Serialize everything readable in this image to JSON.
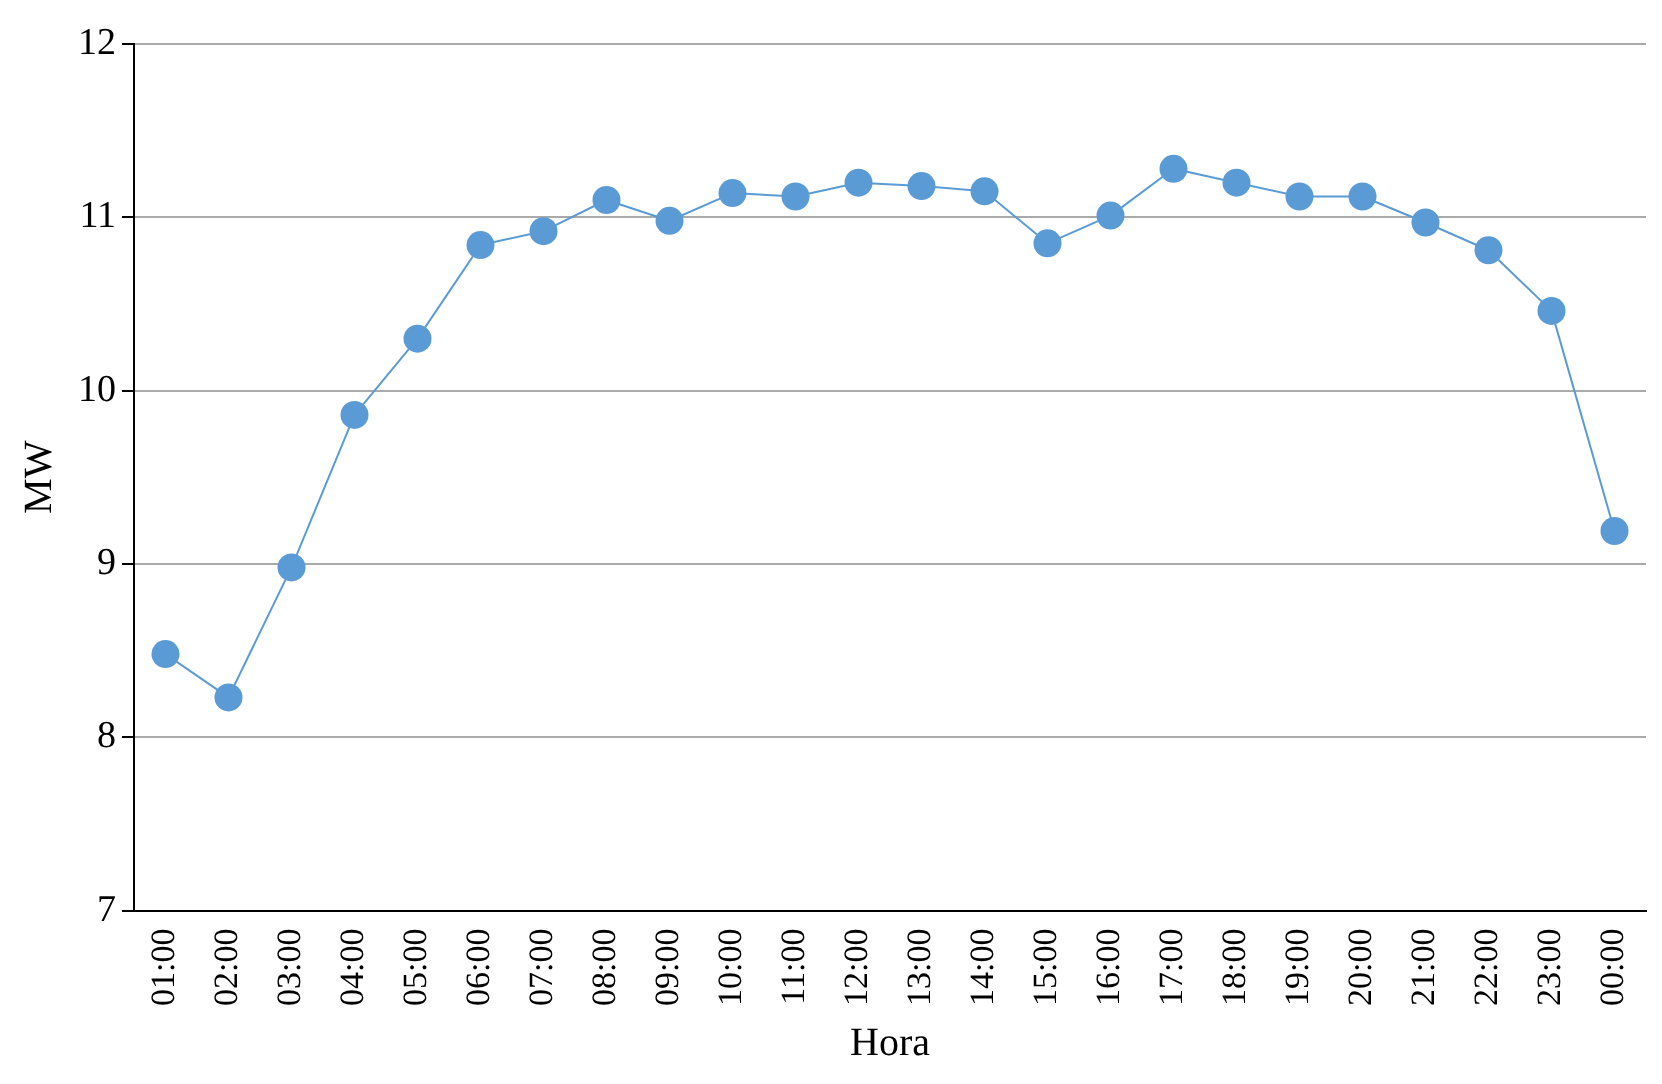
{
  "chart_data": {
    "type": "line",
    "xlabel": "Hora",
    "ylabel": "MW",
    "categories": [
      "01:00",
      "02:00",
      "03:00",
      "04:00",
      "05:00",
      "06:00",
      "07:00",
      "08:00",
      "09:00",
      "10:00",
      "11:00",
      "12:00",
      "13:00",
      "14:00",
      "15:00",
      "16:00",
      "17:00",
      "18:00",
      "19:00",
      "20:00",
      "21:00",
      "22:00",
      "23:00",
      "00:00"
    ],
    "series": [
      {
        "color": "#5b9bd5",
        "values": [
          8.48,
          8.23,
          8.98,
          9.86,
          10.3,
          10.84,
          10.92,
          11.1,
          10.98,
          11.14,
          11.12,
          11.2,
          11.18,
          11.15,
          10.85,
          11.01,
          11.28,
          11.2,
          11.12,
          11.12,
          10.97,
          10.81,
          10.46,
          9.19
        ]
      }
    ],
    "ylim": [
      7,
      12
    ],
    "yticks": [
      7,
      8,
      9,
      10,
      11,
      12
    ],
    "grid": "y",
    "legend": false,
    "marker": "circle",
    "line_style": "solid"
  }
}
